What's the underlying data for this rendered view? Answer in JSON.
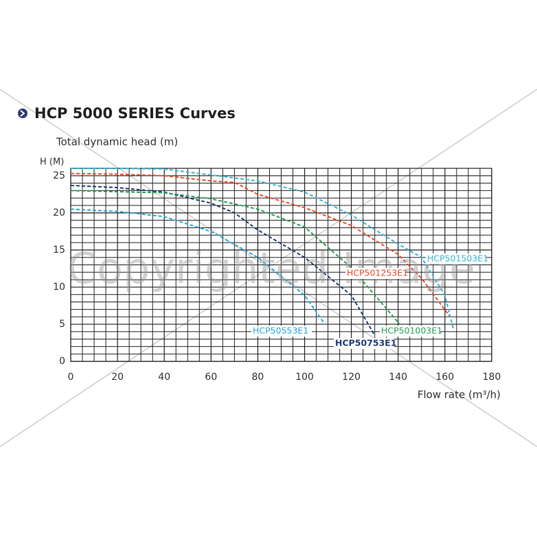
{
  "chart_data": {
    "type": "line",
    "title": "HCP 5000 SERIES Curves",
    "y_label": "Total dynamic head (m)",
    "y_unit_label": "H (M)",
    "x_label": "Flow rate (m³/h)",
    "watermark": "Copyrighted Image",
    "xlim": [
      0,
      180
    ],
    "xticks": [
      0,
      20,
      40,
      60,
      80,
      100,
      120,
      140,
      160,
      180
    ],
    "ylim": [
      0,
      26
    ],
    "yticks": [
      0,
      5,
      10,
      15,
      20,
      25
    ],
    "grid": true,
    "series": [
      {
        "name": "HCP50553E1",
        "color": "#29a8d8",
        "x": [
          0,
          20,
          40,
          60,
          80,
          100,
          108.7
        ],
        "values": [
          20.5,
          20.2,
          19.5,
          17.5,
          14,
          8.9,
          5
        ]
      },
      {
        "name": "HCP50753E1",
        "color": "#1f3d7a",
        "x": [
          0,
          20,
          40,
          60,
          70,
          80,
          100,
          120,
          130
        ],
        "values": [
          23.7,
          23.4,
          22.8,
          21.3,
          20,
          17.7,
          14,
          8.9,
          3.5
        ]
      },
      {
        "name": "HCP501003E1",
        "color": "#2aa05a",
        "x": [
          0,
          40,
          60,
          80,
          100,
          120,
          140.7
        ],
        "values": [
          23,
          22.7,
          21.9,
          20.5,
          18.1,
          12.6,
          5
        ]
      },
      {
        "name": "HCP501253E1",
        "color": "#e84d2f",
        "x": [
          0,
          20,
          40,
          60,
          70,
          80,
          100,
          120,
          140,
          150,
          162
        ],
        "values": [
          25.3,
          25.2,
          25,
          24.3,
          24.1,
          22.5,
          20.7,
          18.3,
          14.4,
          11.2,
          6.1
        ]
      },
      {
        "name": "HCP501503E1",
        "color": "#3bb5d6",
        "x": [
          0,
          20,
          40,
          60,
          80,
          100,
          120,
          140,
          150,
          160,
          163.6
        ],
        "values": [
          26,
          26,
          25.9,
          25.1,
          24.3,
          22.8,
          19.7,
          15.8,
          14,
          8.9,
          4.4
        ]
      }
    ]
  }
}
